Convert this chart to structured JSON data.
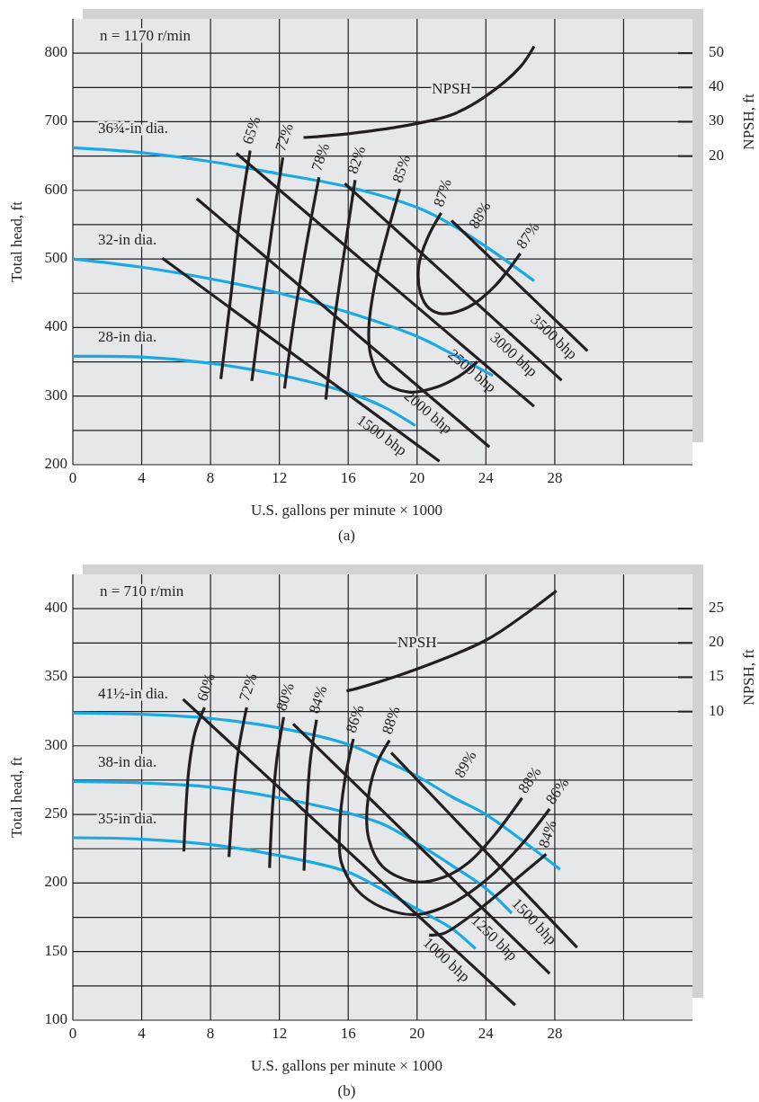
{
  "chart_data": [
    {
      "type": "line",
      "title": "(a)",
      "xlabel": "U.S. gallons per minute × 1000",
      "ylabel": "Total head, ft",
      "y2label": "NPSH, ft",
      "grid": true,
      "xlim": [
        0,
        36
      ],
      "xticks": [
        0,
        4,
        8,
        12,
        16,
        20,
        24,
        28,
        {
          "value": 32,
          "label": null
        }
      ],
      "ylim": [
        200,
        850
      ],
      "yticks": [
        200,
        {
          "value": 250,
          "label": null
        },
        300,
        {
          "value": 350,
          "label": null
        },
        400,
        {
          "value": 450,
          "label": null
        },
        500,
        {
          "value": 550,
          "label": null
        },
        600,
        {
          "value": 650,
          "label": null
        },
        700,
        {
          "value": 750,
          "label": null
        },
        800
      ],
      "y2lim": [
        -70,
        60
      ],
      "y2ticks": [
        20,
        30,
        40,
        50
      ],
      "annotations": [
        "n = 1170 r/min",
        "88%"
      ],
      "series": [
        {
          "name": "36¾-in dia.",
          "color": "#19a9e5",
          "x": [
            0,
            4,
            8,
            12,
            16,
            20,
            22,
            24,
            26.8
          ],
          "values": [
            662,
            655,
            642,
            624,
            605,
            575,
            550,
            518,
            468
          ]
        },
        {
          "name": "32-in dia.",
          "color": "#19a9e5",
          "x": [
            0,
            4,
            8,
            12,
            16,
            20,
            22,
            24.4
          ],
          "values": [
            500,
            488,
            471,
            450,
            422,
            387,
            362,
            330
          ]
        },
        {
          "name": "28-in dia.",
          "color": "#19a9e5",
          "x": [
            0,
            4,
            8,
            12,
            16,
            18,
            19.9
          ],
          "values": [
            358,
            357,
            348,
            331,
            305,
            285,
            257
          ]
        },
        {
          "name": "65%",
          "color": "#231f20",
          "x": [
            8.6,
            9.2,
            9.7,
            10.3
          ],
          "values": [
            325,
            450,
            560,
            658
          ]
        },
        {
          "name": "72%",
          "color": "#231f20",
          "x": [
            10.4,
            11,
            11.6,
            12.2
          ],
          "values": [
            322,
            440,
            550,
            648
          ]
        },
        {
          "name": "78%",
          "color": "#231f20",
          "x": [
            12.3,
            12.9,
            13.6,
            14.3
          ],
          "values": [
            311,
            420,
            525,
            619
          ]
        },
        {
          "name": "82%",
          "color": "#231f20",
          "x": [
            14.7,
            15.2,
            15.8,
            16.4
          ],
          "values": [
            295,
            410,
            515,
            615
          ]
        },
        {
          "name": "85%",
          "color": "#231f20",
          "x": [
            19,
            18.3,
            17.6,
            17.2,
            17.3,
            18,
            19.5,
            21,
            22.5,
            23.5
          ],
          "values": [
            602,
            540,
            470,
            400,
            360,
            322,
            306,
            312,
            330,
            350
          ]
        },
        {
          "name": "87%",
          "color": "#231f20",
          "x": [
            21.4,
            20.6,
            20.1,
            20.2,
            20.7,
            21.5,
            23,
            24.5,
            26
          ],
          "values": [
            567,
            530,
            490,
            450,
            428,
            420,
            430,
            460,
            508
          ]
        },
        {
          "name": "1500 bhp",
          "color": "#231f20",
          "x": [
            5.2,
            21.3
          ],
          "values": [
            501,
            205
          ]
        },
        {
          "name": "2000 bhp",
          "color": "#231f20",
          "x": [
            7.2,
            24.2
          ],
          "values": [
            588,
            226
          ]
        },
        {
          "name": "2500 bhp",
          "color": "#231f20",
          "x": [
            9.5,
            26.8
          ],
          "values": [
            654,
            285
          ]
        },
        {
          "name": "3000 bhp",
          "color": "#231f20",
          "x": [
            15.8,
            28.4
          ],
          "values": [
            610,
            323
          ]
        },
        {
          "name": "3500 bhp",
          "color": "#231f20",
          "x": [
            22,
            29.9
          ],
          "values": [
            556,
            366
          ]
        },
        {
          "name": "NPSH",
          "color": "#231f20",
          "axis": "y2",
          "x": [
            13.4,
            16,
            20,
            22,
            24,
            26,
            26.8
          ],
          "values": [
            25.4,
            26.5,
            29.5,
            32,
            37.5,
            46,
            52
          ]
        }
      ]
    },
    {
      "type": "line",
      "title": "(b)",
      "xlabel": "U.S. gallons per minute × 1000",
      "ylabel": "Total head, ft",
      "y2label": "NPSH, ft",
      "grid": true,
      "xlim": [
        0,
        36
      ],
      "xticks": [
        0,
        4,
        8,
        12,
        16,
        20,
        24,
        28,
        {
          "value": 32,
          "label": null
        }
      ],
      "ylim": [
        100,
        425
      ],
      "yticks": [
        100,
        {
          "value": 125,
          "label": null
        },
        150,
        {
          "value": 175,
          "label": null
        },
        200,
        {
          "value": 225,
          "label": null
        },
        250,
        {
          "value": 275,
          "label": null
        },
        300,
        {
          "value": 325,
          "label": null
        },
        350,
        {
          "value": 375,
          "label": null
        },
        400
      ],
      "y2lim": [
        -35,
        30
      ],
      "y2ticks": [
        10,
        15,
        20,
        25
      ],
      "annotations": [
        "n = 710 r/min",
        "89%"
      ],
      "series": [
        {
          "name": "41½-in dia.",
          "color": "#19a9e5",
          "x": [
            0,
            4,
            8,
            12,
            16,
            18,
            20,
            22,
            24,
            26,
            28.3
          ],
          "values": [
            324,
            323,
            320,
            313,
            301,
            290,
            278,
            263,
            250,
            232,
            210
          ]
        },
        {
          "name": "38-in dia.",
          "color": "#19a9e5",
          "x": [
            0,
            4,
            8,
            12,
            16,
            18,
            20,
            22,
            24,
            25.5
          ],
          "values": [
            274,
            273,
            270,
            262,
            251,
            243,
            229,
            213,
            196,
            178
          ]
        },
        {
          "name": "35-in dia.",
          "color": "#19a9e5",
          "x": [
            0,
            4,
            8,
            12,
            16,
            18,
            20,
            22,
            23.4
          ],
          "values": [
            233,
            232,
            228,
            220,
            208,
            195,
            181,
            167,
            152
          ]
        },
        {
          "name": "60%",
          "color": "#231f20",
          "x": [
            6.45,
            6.55,
            6.75,
            7.1,
            7.65
          ],
          "values": [
            223,
            250,
            284,
            310,
            328
          ]
        },
        {
          "name": "72%",
          "color": "#231f20",
          "x": [
            9.07,
            9.3,
            9.6,
            10.1
          ],
          "values": [
            219,
            260,
            295,
            328
          ]
        },
        {
          "name": "80%",
          "color": "#231f20",
          "x": [
            11.43,
            11.6,
            11.85,
            12.25
          ],
          "values": [
            211,
            255,
            290,
            321
          ]
        },
        {
          "name": "84%",
          "color": "#231f20",
          "x": [
            13.43,
            13.6,
            13.8,
            14.16
          ],
          "values": [
            209,
            255,
            290,
            319
          ]
        },
        {
          "name": "86%",
          "color": "#231f20",
          "x": [
            16.3,
            15.8,
            15.5,
            15.6,
            16.5,
            18,
            20,
            22,
            24,
            26,
            27.7
          ],
          "values": [
            305,
            275,
            240,
            215,
            195,
            182,
            177,
            185,
            202,
            227,
            254
          ]
        },
        {
          "name": "88%",
          "color": "#231f20",
          "x": [
            18.4,
            17.6,
            17.1,
            17.2,
            18,
            19.8,
            21.5,
            23,
            24.5,
            26.1
          ],
          "values": [
            304,
            285,
            255,
            232,
            212,
            201,
            204,
            215,
            235,
            262
          ]
        },
        {
          "name": "84%",
          "color": "#231f20",
          "x": [
            20.7,
            21.5,
            23,
            25,
            27.5
          ],
          "values": [
            162,
            163,
            175,
            195,
            221
          ]
        },
        {
          "name": "1000 bhp",
          "color": "#231f20",
          "x": [
            6.4,
            25.7
          ],
          "values": [
            334,
            111
          ]
        },
        {
          "name": "1250 bhp",
          "color": "#231f20",
          "x": [
            12.8,
            27.7
          ],
          "values": [
            316,
            134
          ]
        },
        {
          "name": "1500 bhp",
          "color": "#231f20",
          "x": [
            18.5,
            29.3
          ],
          "values": [
            295,
            153
          ]
        },
        {
          "name": "NPSH",
          "color": "#231f20",
          "axis": "y2",
          "x": [
            15.9,
            16.7,
            20,
            24,
            26.4,
            28.1
          ],
          "values": [
            13,
            13.5,
            16.2,
            20.4,
            24.4,
            27.6
          ]
        }
      ]
    }
  ]
}
